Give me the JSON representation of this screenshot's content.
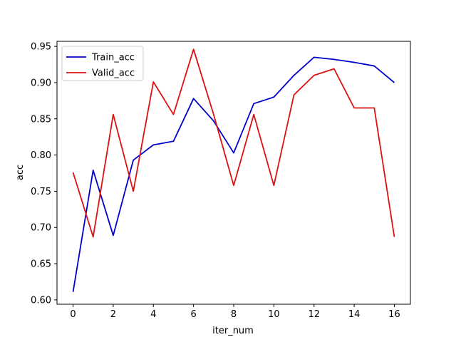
{
  "chart_data": {
    "type": "line",
    "xlabel": "iter_num",
    "ylabel": "acc",
    "xlim": [
      -0.8,
      16.8
    ],
    "ylim": [
      0.594,
      0.957
    ],
    "xticks": [
      0,
      2,
      4,
      6,
      8,
      10,
      12,
      14,
      16
    ],
    "yticks": [
      0.6,
      0.65,
      0.7,
      0.75,
      0.8,
      0.85,
      0.9,
      0.95
    ],
    "ytick_labels": [
      "0.60",
      "0.65",
      "0.70",
      "0.75",
      "0.80",
      "0.85",
      "0.90",
      "0.95"
    ],
    "grid": false,
    "legend_position": "top-left",
    "x": [
      0,
      1,
      2,
      3,
      4,
      5,
      6,
      7,
      8,
      9,
      10,
      11,
      12,
      13,
      14,
      15,
      16
    ],
    "series": [
      {
        "name": "Train_acc",
        "color": "#0000cc",
        "values": [
          0.611,
          0.779,
          0.689,
          0.793,
          0.814,
          0.819,
          0.878,
          0.847,
          0.803,
          0.871,
          0.88,
          0.91,
          0.935,
          0.932,
          0.928,
          0.923,
          0.9
        ]
      },
      {
        "name": "Valid_acc",
        "color": "#dd1111",
        "values": [
          0.776,
          0.687,
          0.856,
          0.75,
          0.901,
          0.856,
          0.946,
          0.856,
          0.758,
          0.856,
          0.758,
          0.883,
          0.91,
          0.919,
          0.865,
          0.865,
          0.687
        ]
      }
    ]
  }
}
